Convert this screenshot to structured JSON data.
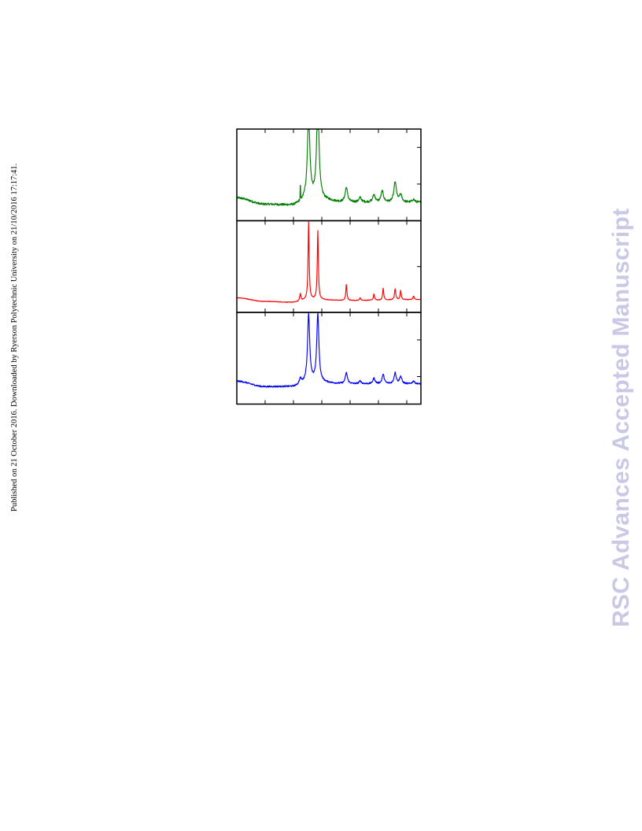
{
  "side_note": "Published on 21 October 2016. Downloaded by Ryerson Polytechnic University on 21/10/2016 17:17:41.",
  "watermark": "RSC Advances Accepted Manuscript",
  "chart_data": [
    {
      "type": "line",
      "title": "",
      "xlabel": "",
      "ylabel": "",
      "xlim": [
        0,
        100
      ],
      "ylim": [
        0,
        1
      ],
      "grid": false,
      "legend": "none",
      "series": [
        {
          "color": "#008000",
          "baseline": [
            [
              0,
              0.25
            ],
            [
              15,
              0.18
            ],
            [
              30,
              0.17
            ],
            [
              40,
              0.24
            ],
            [
              60,
              0.2
            ],
            [
              100,
              0.2
            ]
          ],
          "peaks": [
            [
              34.5,
              0.04,
              0.6
            ],
            [
              39,
              0.8,
              0.9
            ],
            [
              44,
              0.75,
              1.1
            ],
            [
              59.5,
              0.8,
              0.16
            ],
            [
              67,
              0.8,
              0.05
            ],
            [
              74.5,
              0.8,
              0.08
            ],
            [
              79,
              0.8,
              0.12
            ],
            [
              86,
              0.8,
              0.22
            ],
            [
              89,
              0.8,
              0.08
            ],
            [
              96,
              0.8,
              0.03
            ]
          ],
          "noise": 0.012
        }
      ]
    },
    {
      "type": "line",
      "title": "",
      "xlabel": "",
      "ylabel": "",
      "xlim": [
        0,
        100
      ],
      "ylim": [
        0,
        1
      ],
      "grid": false,
      "legend": "none",
      "series": [
        {
          "color": "#ff0000",
          "baseline": [
            [
              0,
              0.16
            ],
            [
              15,
              0.12
            ],
            [
              30,
              0.11
            ],
            [
              40,
              0.14
            ],
            [
              60,
              0.13
            ],
            [
              100,
              0.14
            ]
          ],
          "peaks": [
            [
              34.5,
              0.4,
              0.08
            ],
            [
              39,
              0.35,
              0.85
            ],
            [
              44,
              0.35,
              0.75
            ],
            [
              59.5,
              0.35,
              0.18
            ],
            [
              67,
              0.35,
              0.03
            ],
            [
              74.5,
              0.35,
              0.07
            ],
            [
              79.5,
              0.35,
              0.13
            ],
            [
              86,
              0.4,
              0.12
            ],
            [
              89,
              0.35,
              0.1
            ],
            [
              96,
              0.35,
              0.04
            ]
          ],
          "noise": 0.003
        }
      ]
    },
    {
      "type": "line",
      "title": "",
      "xlabel": "",
      "ylabel": "",
      "xlim": [
        0,
        100
      ],
      "ylim": [
        0,
        1
      ],
      "grid": false,
      "legend": "none",
      "series": [
        {
          "color": "#0000ff",
          "baseline": [
            [
              0,
              0.25
            ],
            [
              15,
              0.19
            ],
            [
              30,
              0.19
            ],
            [
              40,
              0.24
            ],
            [
              60,
              0.22
            ],
            [
              100,
              0.22
            ]
          ],
          "peaks": [
            [
              34.5,
              0.7,
              0.06
            ],
            [
              39,
              0.7,
              0.74
            ],
            [
              44,
              0.7,
              0.74
            ],
            [
              59.5,
              0.7,
              0.12
            ],
            [
              67,
              0.7,
              0.03
            ],
            [
              74.5,
              0.7,
              0.06
            ],
            [
              79.5,
              0.7,
              0.1
            ],
            [
              86,
              0.7,
              0.12
            ],
            [
              89,
              0.7,
              0.08
            ],
            [
              96,
              0.7,
              0.03
            ]
          ],
          "noise": 0.008
        }
      ]
    }
  ]
}
